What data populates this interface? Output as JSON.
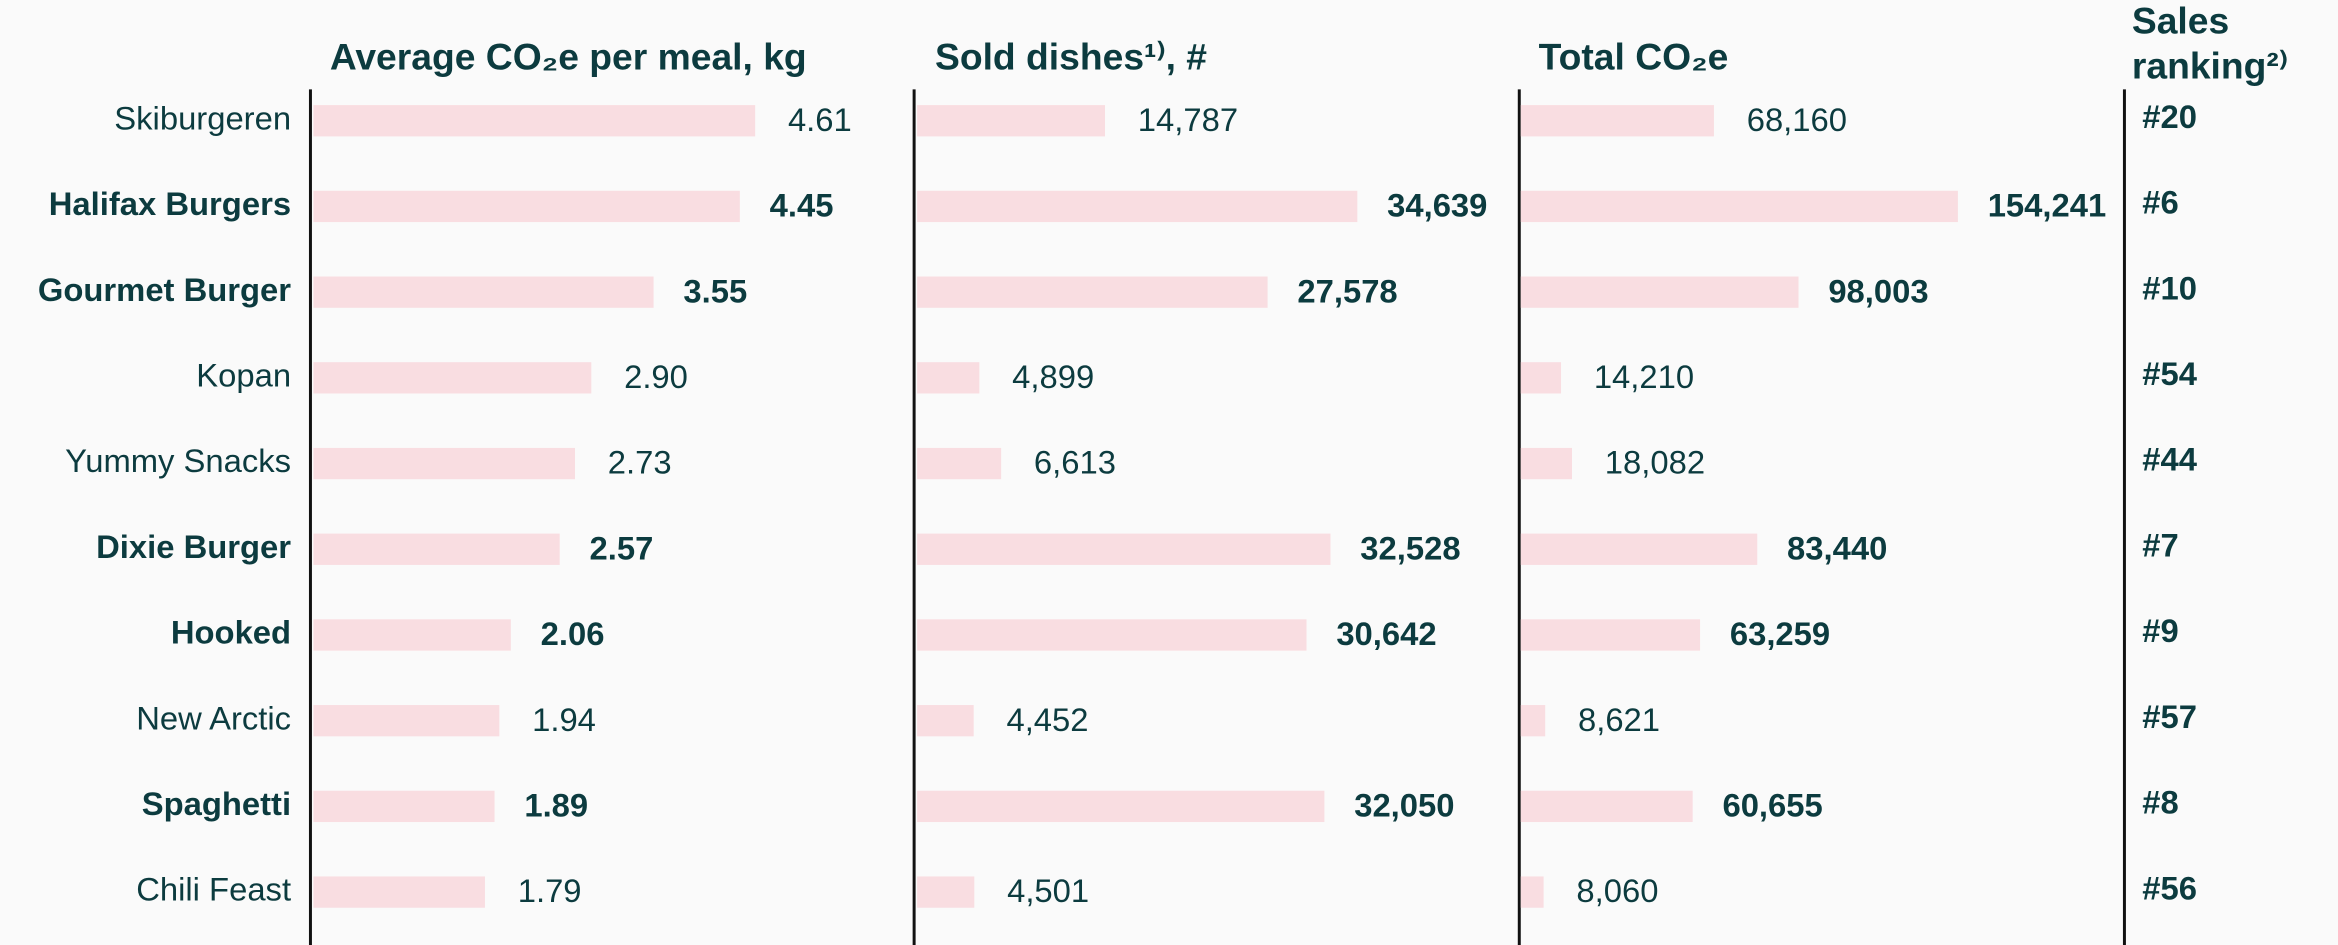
{
  "chart_data": {
    "type": "bar",
    "orientation": "horizontal",
    "categories": [
      "Skiburgeren",
      "Halifax Burgers",
      "Gourmet Burger",
      "Kopan",
      "Yummy Snacks",
      "Dixie Burger",
      "Hooked",
      "New Arctic",
      "Spaghetti",
      "Chili Feast"
    ],
    "highlighted": [
      false,
      true,
      true,
      false,
      false,
      true,
      true,
      false,
      true,
      false
    ],
    "panels": [
      {
        "title": "Average CO₂e per meal, kg",
        "color": "#f9dde1",
        "xlim": [
          0,
          6.3
        ],
        "values": [
          4.61,
          4.45,
          3.55,
          2.9,
          2.73,
          2.57,
          2.06,
          1.94,
          1.89,
          1.79
        ],
        "value_labels": [
          "4.61",
          "4.45",
          "3.55",
          "2.90",
          "2.73",
          "2.57",
          "2.06",
          "1.94",
          "1.89",
          "1.79"
        ]
      },
      {
        "title": "Sold dishes¹⁾, #",
        "color": "#f9dde1",
        "xlim": [
          0,
          47500
        ],
        "values": [
          14787,
          34639,
          27578,
          4899,
          6613,
          32528,
          30642,
          4452,
          32050,
          4501
        ],
        "value_labels": [
          "14,787",
          "34,639",
          "27,578",
          "4,899",
          "6,613",
          "32,528",
          "30,642",
          "4,452",
          "32,050",
          "4,501"
        ]
      },
      {
        "title": "Total CO₂e",
        "color": "#f9dde1",
        "xlim": [
          0,
          213000
        ],
        "values": [
          68160,
          154241,
          98003,
          14210,
          18082,
          83440,
          63259,
          8621,
          60655,
          8060
        ],
        "value_labels": [
          "68,160",
          "154,241",
          "98,003",
          "14,210",
          "18,082",
          "83,440",
          "63,259",
          "8,621",
          "60,655",
          "8,060"
        ]
      }
    ],
    "ranking": {
      "title": [
        "Sales",
        "ranking²⁾"
      ],
      "values": [
        20,
        6,
        10,
        54,
        44,
        7,
        9,
        57,
        8,
        56
      ],
      "value_labels": [
        "#20",
        "#6",
        "#10",
        "#54",
        "#44",
        "#7",
        "#9",
        "#57",
        "#8",
        "#56"
      ]
    }
  }
}
